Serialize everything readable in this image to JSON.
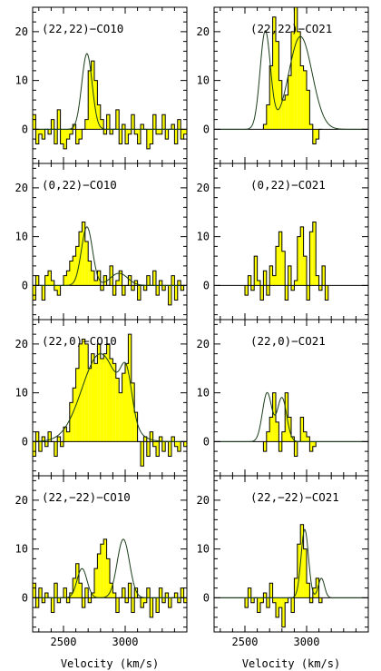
{
  "figure": {
    "xlabel": "Velocity (km/s)",
    "xlim": [
      2250,
      3500
    ],
    "ylim": [
      -7,
      25
    ],
    "xticks": [
      2500,
      3000
    ],
    "yticks": [
      0,
      10,
      20
    ]
  },
  "chart_data": [
    {
      "type": "step",
      "title": "(22,22)−CO10",
      "x_start": 2250,
      "dx": 25,
      "values": [
        3,
        -3,
        -1,
        -2,
        0,
        -1,
        2,
        -3,
        4,
        -3,
        -4,
        -2,
        -1,
        1,
        -3,
        -2,
        0,
        2,
        12,
        14,
        10,
        5,
        2,
        -1,
        3,
        -1,
        0,
        4,
        -3,
        1,
        -3,
        -1,
        3,
        -1,
        -3,
        1,
        0,
        -4,
        -3,
        3,
        -1,
        -1,
        3,
        -2,
        0,
        1,
        -3,
        2,
        -2,
        -1
      ],
      "fits": [
        {
          "name": "",
          "components": [
            {
              "amp": 15.5,
              "mu": 2690,
              "sigma": 42
            }
          ]
        }
      ]
    },
    {
      "type": "step",
      "title": "(22,22)−CO21",
      "x_start": 2250,
      "dx": 25,
      "values": [
        null,
        null,
        null,
        null,
        null,
        null,
        null,
        null,
        null,
        null,
        null,
        null,
        null,
        null,
        null,
        null,
        1,
        5,
        13,
        23,
        18,
        10,
        6,
        7,
        11,
        20,
        29,
        20,
        13,
        12,
        8,
        1,
        -3,
        -2,
        0,
        null,
        null,
        null,
        null,
        null,
        null,
        null,
        null,
        null,
        null,
        null,
        null,
        null,
        null,
        null
      ],
      "fits": [
        {
          "name": "",
          "components": [
            {
              "amp": 20,
              "mu": 2665,
              "sigma": 42
            },
            {
              "amp": 19,
              "mu": 2950,
              "sigma": 95
            }
          ]
        }
      ]
    },
    {
      "type": "step",
      "title": "(0,22)−CO10",
      "x_start": 2250,
      "dx": 25,
      "values": [
        -3,
        2,
        0,
        -3,
        2,
        3,
        1,
        -1,
        -2,
        0,
        2,
        3,
        5,
        6,
        8,
        11,
        13,
        9,
        5,
        3,
        1,
        3,
        -1,
        2,
        0,
        4,
        -2,
        1,
        3,
        -2,
        0,
        2,
        -1,
        1,
        -3,
        0,
        -1,
        2,
        0,
        3,
        -2,
        1,
        -1,
        0,
        -4,
        2,
        -3,
        1,
        -1,
        0
      ],
      "fits": [
        {
          "name": "",
          "components": [
            {
              "amp": 12,
              "mu": 2690,
              "sigma": 45
            },
            {
              "amp": 2.5,
              "mu": 2950,
              "sigma": 70
            }
          ]
        }
      ]
    },
    {
      "type": "step",
      "title": "(0,22)−CO21",
      "x_start": 2250,
      "dx": 25,
      "values": [
        null,
        null,
        null,
        null,
        null,
        null,
        null,
        null,
        null,
        null,
        -2,
        2,
        -1,
        6,
        1,
        -3,
        3,
        -2,
        4,
        2,
        8,
        11,
        7,
        -3,
        4,
        -1,
        1,
        10,
        12,
        6,
        -3,
        11,
        13,
        2,
        -1,
        4,
        -3,
        null,
        null,
        null,
        null,
        null,
        null,
        null,
        null,
        null,
        null,
        null,
        null,
        null
      ],
      "fits": []
    },
    {
      "type": "step",
      "title": "(22,0)−CO10",
      "x_start": 2250,
      "dx": 25,
      "values": [
        -3,
        2,
        -2,
        1,
        -1,
        2,
        0,
        -3,
        1,
        -1,
        3,
        2,
        8,
        11,
        15,
        20,
        21,
        20,
        15,
        18,
        16,
        20,
        17,
        18,
        20,
        17,
        16,
        13,
        10,
        14,
        16,
        22,
        12,
        6,
        0,
        -5,
        1,
        -3,
        2,
        -1,
        -3,
        1,
        -2,
        0,
        -3,
        1,
        -1,
        -2,
        0,
        -1
      ],
      "fits": [
        {
          "name": "",
          "components": [
            {
              "amp": 18,
              "mu": 2800,
              "sigma": 150
            },
            {
              "amp": 9,
              "mu": 3010,
              "sigma": 45
            }
          ]
        }
      ]
    },
    {
      "type": "step",
      "title": "(22,0)−CO21",
      "x_start": 2250,
      "dx": 25,
      "values": [
        null,
        null,
        null,
        null,
        null,
        null,
        null,
        null,
        null,
        null,
        null,
        null,
        null,
        null,
        null,
        null,
        -2,
        2,
        5,
        10,
        4,
        -2,
        2,
        10,
        5,
        1,
        -3,
        0,
        5,
        2,
        1,
        -2,
        -1,
        null,
        null,
        null,
        null,
        null,
        null,
        null,
        null,
        null,
        null,
        null,
        null,
        null,
        null,
        null,
        null,
        null
      ],
      "fits": [
        {
          "name": "",
          "components": [
            {
              "amp": 10,
              "mu": 2680,
              "sigma": 38
            },
            {
              "amp": 9,
              "mu": 2800,
              "sigma": 38
            }
          ]
        }
      ]
    },
    {
      "type": "step",
      "title": "(22,−22)−CO10",
      "x_start": 2250,
      "dx": 25,
      "values": [
        3,
        -2,
        2,
        -1,
        1,
        0,
        -3,
        3,
        -1,
        0,
        2,
        -1,
        1,
        4,
        7,
        3,
        -2,
        2,
        -1,
        1,
        6,
        9,
        11,
        12,
        8,
        3,
        1,
        -3,
        0,
        2,
        -1,
        3,
        -3,
        2,
        0,
        -2,
        -1,
        2,
        -4,
        0,
        -3,
        2,
        -1,
        1,
        -2,
        0,
        1,
        -1,
        2,
        -1
      ],
      "fits": [
        {
          "name": "",
          "components": [
            {
              "amp": 6,
              "mu": 2650,
              "sigma": 40
            },
            {
              "amp": 12,
              "mu": 2985,
              "sigma": 50
            }
          ]
        }
      ]
    },
    {
      "type": "step",
      "title": "(22,−22)−CO21",
      "x_start": 2250,
      "dx": 25,
      "values": [
        null,
        null,
        null,
        null,
        null,
        null,
        null,
        null,
        null,
        null,
        -2,
        2,
        -1,
        0,
        -3,
        -1,
        1,
        -2,
        3,
        -1,
        -4,
        -2,
        -6,
        -1,
        0,
        -3,
        4,
        11,
        15,
        10,
        3,
        -1,
        2,
        4,
        -1,
        null,
        null,
        null,
        null,
        null,
        null,
        null,
        null,
        null,
        null,
        null,
        null,
        null,
        null,
        null
      ],
      "fits": [
        {
          "name": "",
          "components": [
            {
              "amp": 14,
              "mu": 2985,
              "sigma": 30
            },
            {
              "amp": 4,
              "mu": 3120,
              "sigma": 25
            }
          ]
        }
      ]
    }
  ],
  "colors": {
    "fill": "#ffff00",
    "line": "#000000",
    "fit": "#1a3d1a"
  }
}
